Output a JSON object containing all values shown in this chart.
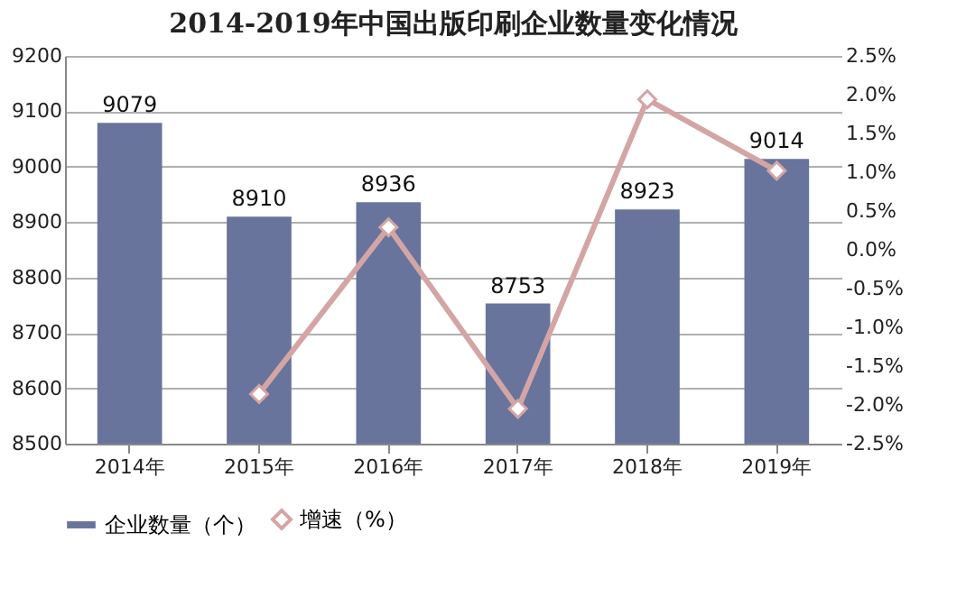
{
  "chart_data": {
    "type": "bar",
    "title": "2014-2019年中国出版印刷企业数量变化情况",
    "categories": [
      "2014年",
      "2015年",
      "2016年",
      "2017年",
      "2018年",
      "2019年"
    ],
    "series": [
      {
        "name": "企业数量（个）",
        "type": "bar",
        "color": "#68749c",
        "values": [
          9079,
          8910,
          8936,
          8753,
          8923,
          9014
        ],
        "value_labels": [
          "9079",
          "8910",
          "8936",
          "8753",
          "8923",
          "9014"
        ]
      },
      {
        "name": "增速（%）",
        "type": "line",
        "axis": "y2",
        "color": "#d4a5a5",
        "marker": "diamond",
        "values": [
          null,
          -1.86,
          0.29,
          -2.05,
          1.94,
          1.02
        ]
      }
    ],
    "ylim": [
      8500,
      9200
    ],
    "yticks": [
      8500,
      8600,
      8700,
      8800,
      8900,
      9000,
      9100,
      9200
    ],
    "y2lim": [
      -2.5,
      2.5
    ],
    "y2ticks": [
      {
        "value": -2.5,
        "label": "-2.5%"
      },
      {
        "value": -2.0,
        "label": "-2.0%"
      },
      {
        "value": -1.5,
        "label": "-1.5%"
      },
      {
        "value": -1.0,
        "label": "-1.0%"
      },
      {
        "value": -0.5,
        "label": "-0.5%"
      },
      {
        "value": 0.0,
        "label": "0.0%"
      },
      {
        "value": 0.5,
        "label": "0.5%"
      },
      {
        "value": 1.0,
        "label": "1.0%"
      },
      {
        "value": 1.5,
        "label": "1.5%"
      },
      {
        "value": 2.0,
        "label": "2.0%"
      },
      {
        "value": 2.5,
        "label": "2.5%"
      }
    ],
    "grid": "y",
    "legend": "bottom"
  }
}
